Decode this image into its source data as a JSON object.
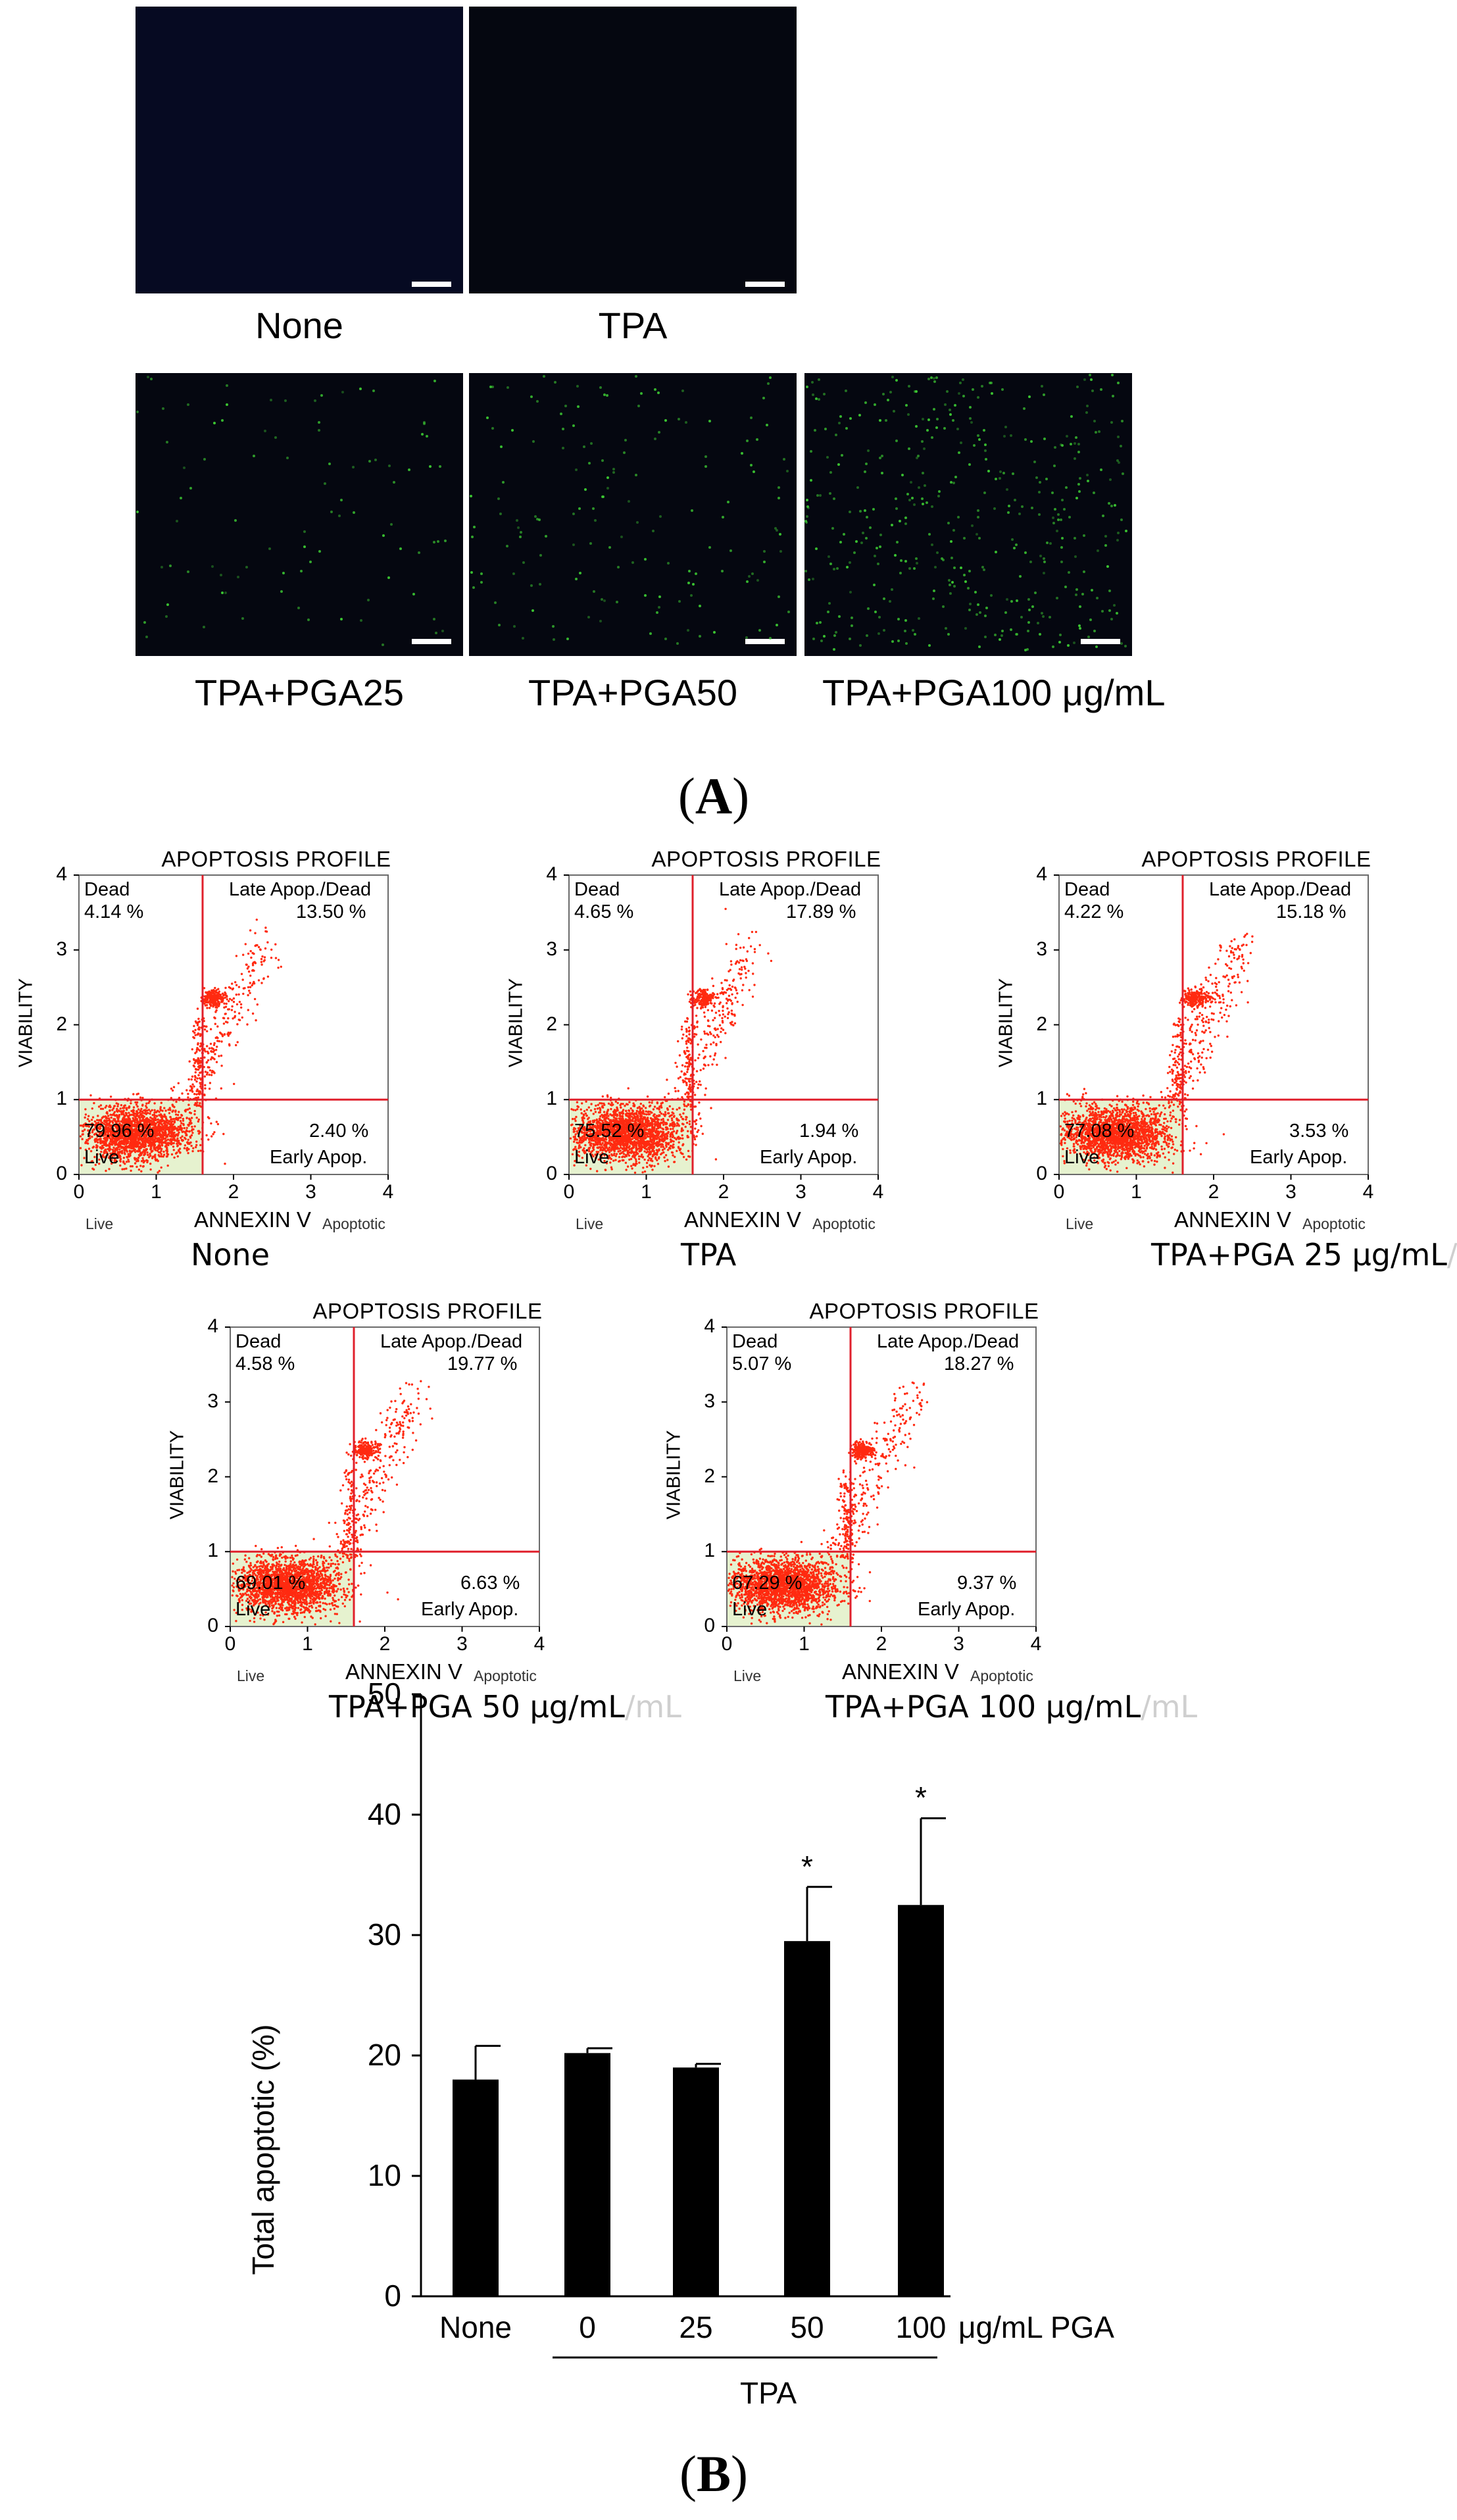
{
  "panel_a": {
    "images": [
      {
        "id": "none",
        "label": "None"
      },
      {
        "id": "tpa",
        "label": "TPA"
      },
      {
        "id": "tpa-pga25",
        "label": "TPA+PGA25"
      },
      {
        "id": "tpa-pga50",
        "label": "TPA+PGA50"
      },
      {
        "id": "tpa-pga100",
        "label": "TPA+PGA100 μg/mL"
      }
    ],
    "panel_open": "(",
    "panel_letter": "A",
    "panel_close": ")"
  },
  "flow": {
    "title": "APOPTOSIS PROFILE",
    "y_label": "VIABILITY",
    "x_label": "ANNEXIN V",
    "x_left_note": "Live",
    "x_right_note": "Apoptotic",
    "ticks": [
      "0",
      "1",
      "2",
      "3",
      "4"
    ],
    "dead_label": "Dead",
    "late_label": "Late Apop./Dead",
    "early_label": "Early Apop.",
    "live_label": "Live",
    "plots": [
      {
        "caption": "None",
        "caption_extra": "",
        "dead": "4.14 %",
        "late": "13.50 %",
        "live": "79.96 %",
        "early": "2.40 %"
      },
      {
        "caption": "TPA",
        "caption_extra": "",
        "dead": "4.65 %",
        "late": "17.89 %",
        "live": "75.52 %",
        "early": "1.94 %"
      },
      {
        "caption": "TPA+PGA 25 μg/mL",
        "caption_extra": "/",
        "dead": "4.22 %",
        "late": "15.18 %",
        "live": "77.08 %",
        "early": "3.53 %"
      },
      {
        "caption": "TPA+PGA 50 μg/mL",
        "caption_extra": "/mL",
        "dead": "4.58 %",
        "late": "19.77 %",
        "live": "69.01 %",
        "early": "6.63 %"
      },
      {
        "caption": "TPA+PGA 100 μg/mL",
        "caption_extra": "/mL",
        "dead": "5.07 %",
        "late": "18.27 %",
        "live": "67.29 %",
        "early": "9.37 %"
      }
    ]
  },
  "chart_data": {
    "type": "bar",
    "title": "",
    "ylabel": "Total apoptotic (%)",
    "xlabel": "",
    "categories": [
      "None",
      "0",
      "25",
      "50",
      "100"
    ],
    "values": [
      18,
      20.2,
      19,
      29.5,
      32.5
    ],
    "errors": [
      2.8,
      0.4,
      0.3,
      4.5,
      7.2
    ],
    "significance": [
      "",
      "",
      "",
      "*",
      "*"
    ],
    "ylim": [
      0,
      50
    ],
    "yticks": [
      "0",
      "10",
      "20",
      "30",
      "40",
      "50"
    ],
    "unit_label": "μg/mL PGA",
    "group_label": "TPA",
    "colors": {
      "bar": "#000000"
    }
  },
  "panel_b": {
    "panel_open": "(",
    "panel_letter": "B",
    "panel_close": ")"
  }
}
